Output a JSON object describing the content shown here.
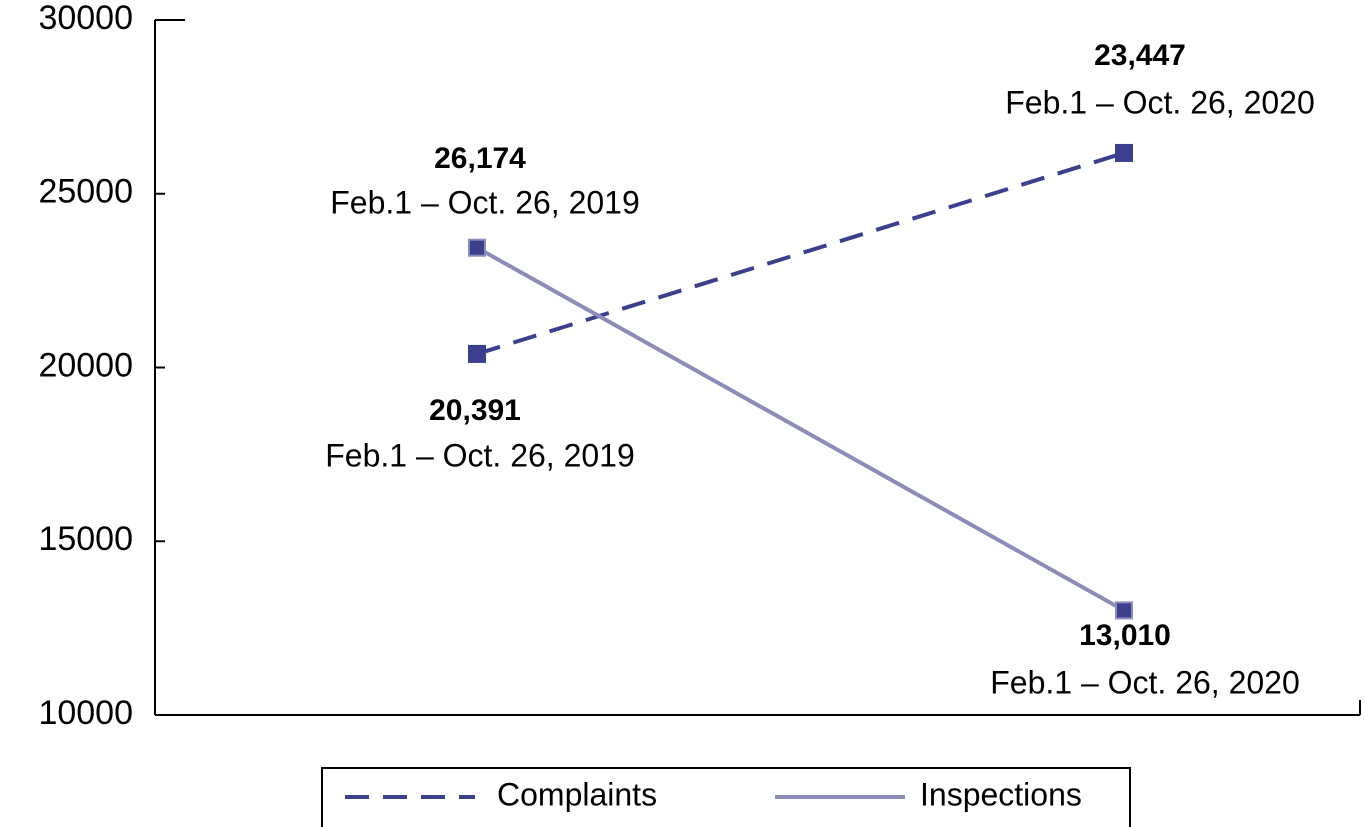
{
  "chart_data": {
    "type": "line",
    "categories": [
      null,
      null
    ],
    "series": [
      {
        "name": "Complaints",
        "color": "#3b3f8c",
        "line_style": "dashed",
        "values": [
          20391,
          26174
        ]
      },
      {
        "name": "Inspections",
        "color": "#8c8cb8",
        "line_style": "solid",
        "values": [
          23447,
          13010
        ]
      }
    ],
    "annotations": [
      {
        "text": "26,174",
        "subtext": "Feb.1 – Oct. 26, 2019"
      },
      {
        "text": "20,391",
        "subtext": "Feb.1 – Oct. 26, 2019"
      },
      {
        "text": "23,447",
        "subtext": "Feb.1 – Oct. 26, 2020"
      },
      {
        "text": "13,010",
        "subtext": "Feb.1 – Oct. 26, 2020"
      }
    ],
    "ylim": [
      10000,
      30000
    ],
    "yticks": [
      10000,
      15000,
      20000,
      25000,
      30000
    ],
    "grid": false,
    "legend": "bottom"
  }
}
